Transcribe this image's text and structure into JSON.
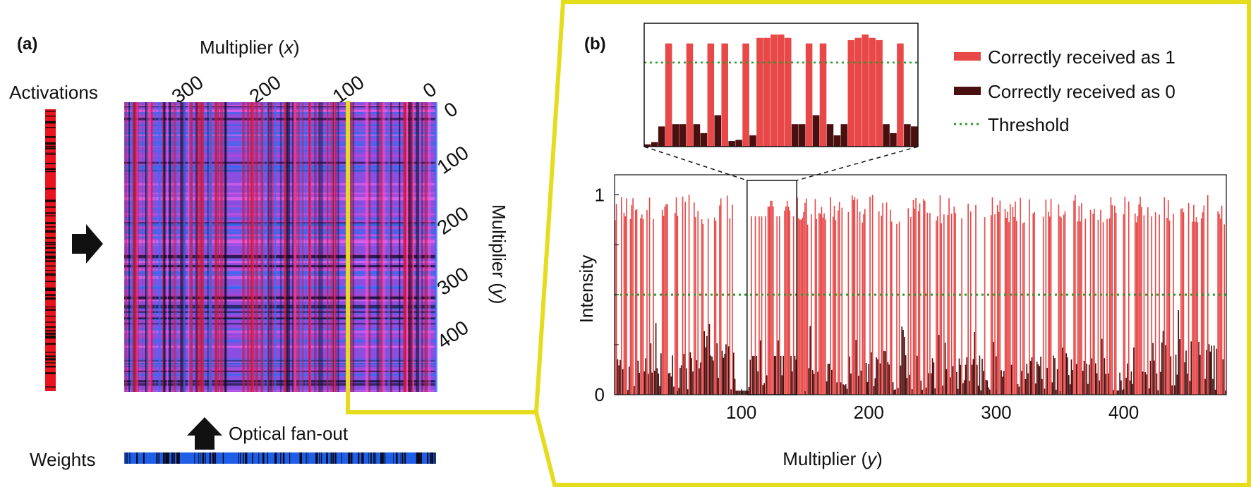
{
  "panel_a": {
    "label": "(a)",
    "activations_label": "Activations",
    "weights_label": "Weights",
    "fanout_label": "Optical fan-out",
    "x_axis_label_prefix": "Multiplier (",
    "x_axis_label_var": "x",
    "x_axis_label_suffix": ")",
    "y_axis_label_prefix": "Multiplier (",
    "y_axis_label_var": "y",
    "y_axis_label_suffix": ")",
    "x_ticks": [
      "300",
      "200",
      "100",
      "0"
    ],
    "y_ticks": [
      "0",
      "100",
      "200",
      "300",
      "400"
    ],
    "colors": {
      "activation": "#e8141e",
      "weight": "#1f5fe8",
      "product_pink": "#e060e8",
      "product_blue": "#3a6af0",
      "highlight": "#e6dc1e"
    }
  },
  "panel_b": {
    "label": "(b)",
    "legend": [
      {
        "name": "Correctly received as 1",
        "color": "#e84848"
      },
      {
        "name": "Correctly received as 0",
        "color": "#4a0f0f"
      },
      {
        "name": "Threshold",
        "color": "#2a9a2a"
      }
    ]
  },
  "chart_data": [
    {
      "type": "bar",
      "title": "",
      "xlabel_prefix": "Multiplier (",
      "xlabel_var": "y",
      "xlabel_suffix": ")",
      "ylabel": "Intensity",
      "x_range": [
        1,
        480
      ],
      "ylim": [
        0,
        1.1
      ],
      "x_ticks": [
        100,
        200,
        300,
        400
      ],
      "x_tick_labels": [
        "100",
        "200",
        "300",
        "400"
      ],
      "y_ticks": [
        0,
        1
      ],
      "y_tick_labels": [
        "0",
        "1"
      ],
      "threshold": 0.5,
      "series": [
        {
          "name": "Correctly received as 1",
          "color": "#e84848"
        },
        {
          "name": "Correctly received as 0",
          "color": "#4a0f0f"
        }
      ],
      "zoom_window": [
        105,
        143
      ],
      "inset": {
        "bars": [
          {
            "x": 105,
            "v": 0.02,
            "s": 0
          },
          {
            "x": 106,
            "v": 0.04,
            "s": 0
          },
          {
            "x": 107,
            "v": 0.18,
            "s": 0
          },
          {
            "x": 108,
            "v": 0.92,
            "s": 1
          },
          {
            "x": 109,
            "v": 0.2,
            "s": 0
          },
          {
            "x": 110,
            "v": 0.2,
            "s": 0
          },
          {
            "x": 111,
            "v": 0.92,
            "s": 1
          },
          {
            "x": 112,
            "v": 0.2,
            "s": 0
          },
          {
            "x": 113,
            "v": 0.12,
            "s": 0
          },
          {
            "x": 114,
            "v": 0.92,
            "s": 1
          },
          {
            "x": 115,
            "v": 0.28,
            "s": 0
          },
          {
            "x": 116,
            "v": 0.92,
            "s": 1
          },
          {
            "x": 117,
            "v": 0.05,
            "s": 0
          },
          {
            "x": 118,
            "v": 0.06,
            "s": 0
          },
          {
            "x": 119,
            "v": 0.92,
            "s": 1
          },
          {
            "x": 120,
            "v": 0.1,
            "s": 0
          },
          {
            "x": 121,
            "v": 0.97,
            "s": 1
          },
          {
            "x": 122,
            "v": 0.97,
            "s": 1
          },
          {
            "x": 123,
            "v": 1.0,
            "s": 1
          },
          {
            "x": 124,
            "v": 1.0,
            "s": 1
          },
          {
            "x": 125,
            "v": 0.97,
            "s": 1
          },
          {
            "x": 126,
            "v": 0.2,
            "s": 0
          },
          {
            "x": 127,
            "v": 0.2,
            "s": 0
          },
          {
            "x": 128,
            "v": 0.92,
            "s": 1
          },
          {
            "x": 129,
            "v": 0.28,
            "s": 0
          },
          {
            "x": 130,
            "v": 0.92,
            "s": 1
          },
          {
            "x": 131,
            "v": 0.2,
            "s": 0
          },
          {
            "x": 132,
            "v": 0.1,
            "s": 0
          },
          {
            "x": 133,
            "v": 0.2,
            "s": 0
          },
          {
            "x": 134,
            "v": 0.95,
            "s": 1
          },
          {
            "x": 135,
            "v": 0.97,
            "s": 1
          },
          {
            "x": 136,
            "v": 1.0,
            "s": 1
          },
          {
            "x": 137,
            "v": 0.97,
            "s": 1
          },
          {
            "x": 138,
            "v": 0.95,
            "s": 1
          },
          {
            "x": 139,
            "v": 0.2,
            "s": 0
          },
          {
            "x": 140,
            "v": 0.12,
            "s": 0
          },
          {
            "x": 141,
            "v": 0.92,
            "s": 1
          },
          {
            "x": 142,
            "v": 0.2,
            "s": 0
          },
          {
            "x": 143,
            "v": 0.18,
            "s": 0
          }
        ],
        "ylim": [
          0,
          1.05
        ]
      }
    }
  ]
}
